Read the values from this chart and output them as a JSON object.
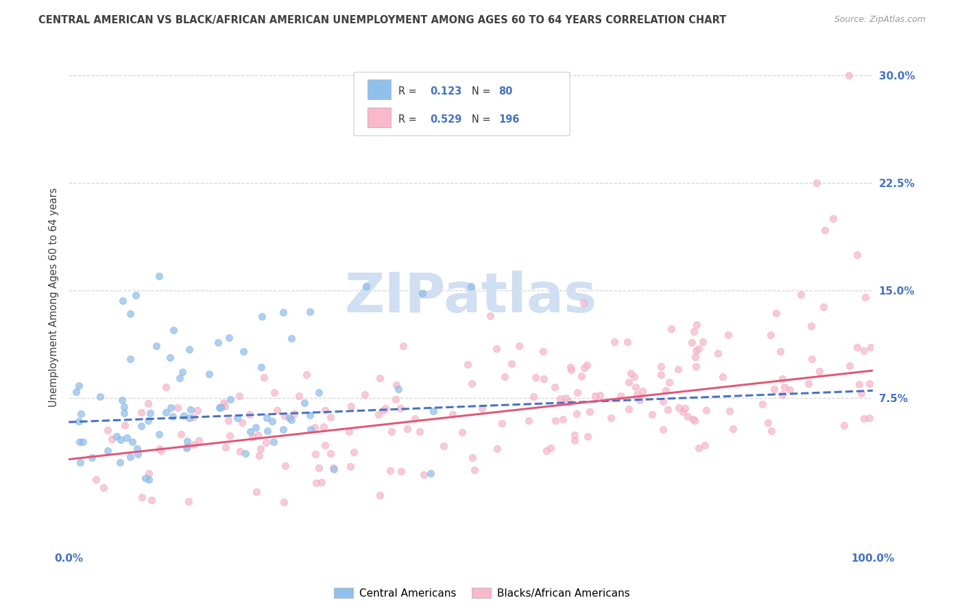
{
  "title": "CENTRAL AMERICAN VS BLACK/AFRICAN AMERICAN UNEMPLOYMENT AMONG AGES 60 TO 64 YEARS CORRELATION CHART",
  "source": "Source: ZipAtlas.com",
  "ylabel": "Unemployment Among Ages 60 to 64 years",
  "xlim": [
    0,
    100
  ],
  "ylim": [
    -3,
    32
  ],
  "ytick_vals": [
    7.5,
    15.0,
    22.5,
    30.0
  ],
  "xtick_vals": [
    0,
    25,
    50,
    75,
    100
  ],
  "xtick_labels": [
    "0.0%",
    "",
    "",
    "",
    "100.0%"
  ],
  "blue_R": 0.123,
  "blue_N": 80,
  "pink_R": 0.529,
  "pink_N": 196,
  "blue_color": "#92C0EC",
  "pink_color": "#F9B8CB",
  "blue_line_color": "#4472C4",
  "pink_line_color": "#E05878",
  "title_color": "#404040",
  "title_fontsize": 10.5,
  "source_color": "#999999",
  "source_fontsize": 9,
  "axis_label_color": "#4472C4",
  "text_color": "#333333",
  "watermark": "ZIPatlas",
  "watermark_color": "#D0DFF2",
  "background_color": "#FFFFFF",
  "grid_color": "#CCCCCC",
  "legend_box_color": "#F5F5F5",
  "legend_edge_color": "#DDDDDD",
  "scatter_size": 55,
  "scatter_alpha": 0.75,
  "blue_trend_intercept": 5.8,
  "blue_trend_slope": 0.022,
  "pink_trend_intercept": 3.2,
  "pink_trend_slope": 0.062
}
